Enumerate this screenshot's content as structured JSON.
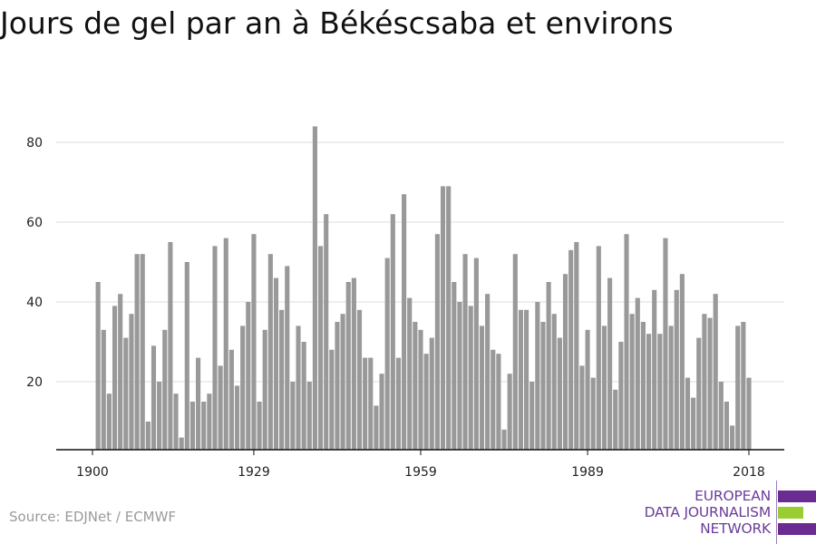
{
  "title": "Jours de gel par an à Békéscsaba et environs",
  "source": "Source: EDJNet / ECMWF",
  "logo": {
    "lines": [
      "EUROPEAN",
      "DATA JOURNALISM",
      "NETWORK"
    ],
    "colors": {
      "text": "#6a3d9a",
      "bar1": "#6a2c91",
      "bar2": "#9acd32",
      "bar3": "#6a2c91"
    }
  },
  "chart_data": {
    "type": "bar",
    "title": "Jours de gel par an à Békéscsaba et environs",
    "xlabel": "",
    "ylabel": "",
    "ylim": [
      0,
      90
    ],
    "yticks": [
      20,
      40,
      60,
      80
    ],
    "xticks": [
      1900,
      1929,
      1959,
      1989,
      2018
    ],
    "grid": true,
    "bar_color": "#999999",
    "x_start": 1901,
    "x": [
      1901,
      1902,
      1903,
      1904,
      1905,
      1906,
      1907,
      1908,
      1909,
      1910,
      1911,
      1912,
      1913,
      1914,
      1915,
      1916,
      1917,
      1918,
      1919,
      1920,
      1921,
      1922,
      1923,
      1924,
      1925,
      1926,
      1927,
      1928,
      1929,
      1930,
      1931,
      1932,
      1933,
      1934,
      1935,
      1936,
      1937,
      1938,
      1939,
      1940,
      1941,
      1942,
      1943,
      1944,
      1945,
      1946,
      1947,
      1948,
      1949,
      1950,
      1951,
      1952,
      1953,
      1954,
      1955,
      1956,
      1957,
      1958,
      1959,
      1960,
      1961,
      1962,
      1963,
      1964,
      1965,
      1966,
      1967,
      1968,
      1969,
      1970,
      1971,
      1972,
      1973,
      1974,
      1975,
      1976,
      1977,
      1978,
      1979,
      1980,
      1981,
      1982,
      1983,
      1984,
      1985,
      1986,
      1987,
      1988,
      1989,
      1990,
      1991,
      1992,
      1993,
      1994,
      1995,
      1996,
      1997,
      1998,
      1999,
      2000,
      2001,
      2002,
      2003,
      2004,
      2005,
      2006,
      2007,
      2008,
      2009,
      2010,
      2011,
      2012,
      2013,
      2014,
      2015,
      2016,
      2017,
      2018
    ],
    "values": [
      45,
      33,
      17,
      39,
      42,
      31,
      37,
      52,
      52,
      10,
      29,
      20,
      33,
      55,
      17,
      6,
      50,
      15,
      26,
      15,
      17,
      54,
      24,
      56,
      28,
      19,
      34,
      40,
      57,
      15,
      33,
      52,
      46,
      38,
      49,
      20,
      34,
      30,
      20,
      84,
      54,
      62,
      28,
      35,
      37,
      45,
      46,
      38,
      26,
      26,
      14,
      22,
      51,
      62,
      26,
      67,
      41,
      35,
      33,
      27,
      31,
      57,
      69,
      69,
      45,
      40,
      52,
      39,
      51,
      34,
      42,
      28,
      27,
      8,
      22,
      52,
      38,
      38,
      20,
      40,
      35,
      45,
      37,
      31,
      47,
      53,
      55,
      24,
      33,
      21,
      54,
      34,
      46,
      18,
      30,
      57,
      37,
      41,
      35,
      32,
      43,
      32,
      56,
      34,
      43,
      47,
      21,
      16,
      31,
      37,
      36,
      42,
      20,
      15,
      9,
      34,
      35,
      21
    ]
  }
}
